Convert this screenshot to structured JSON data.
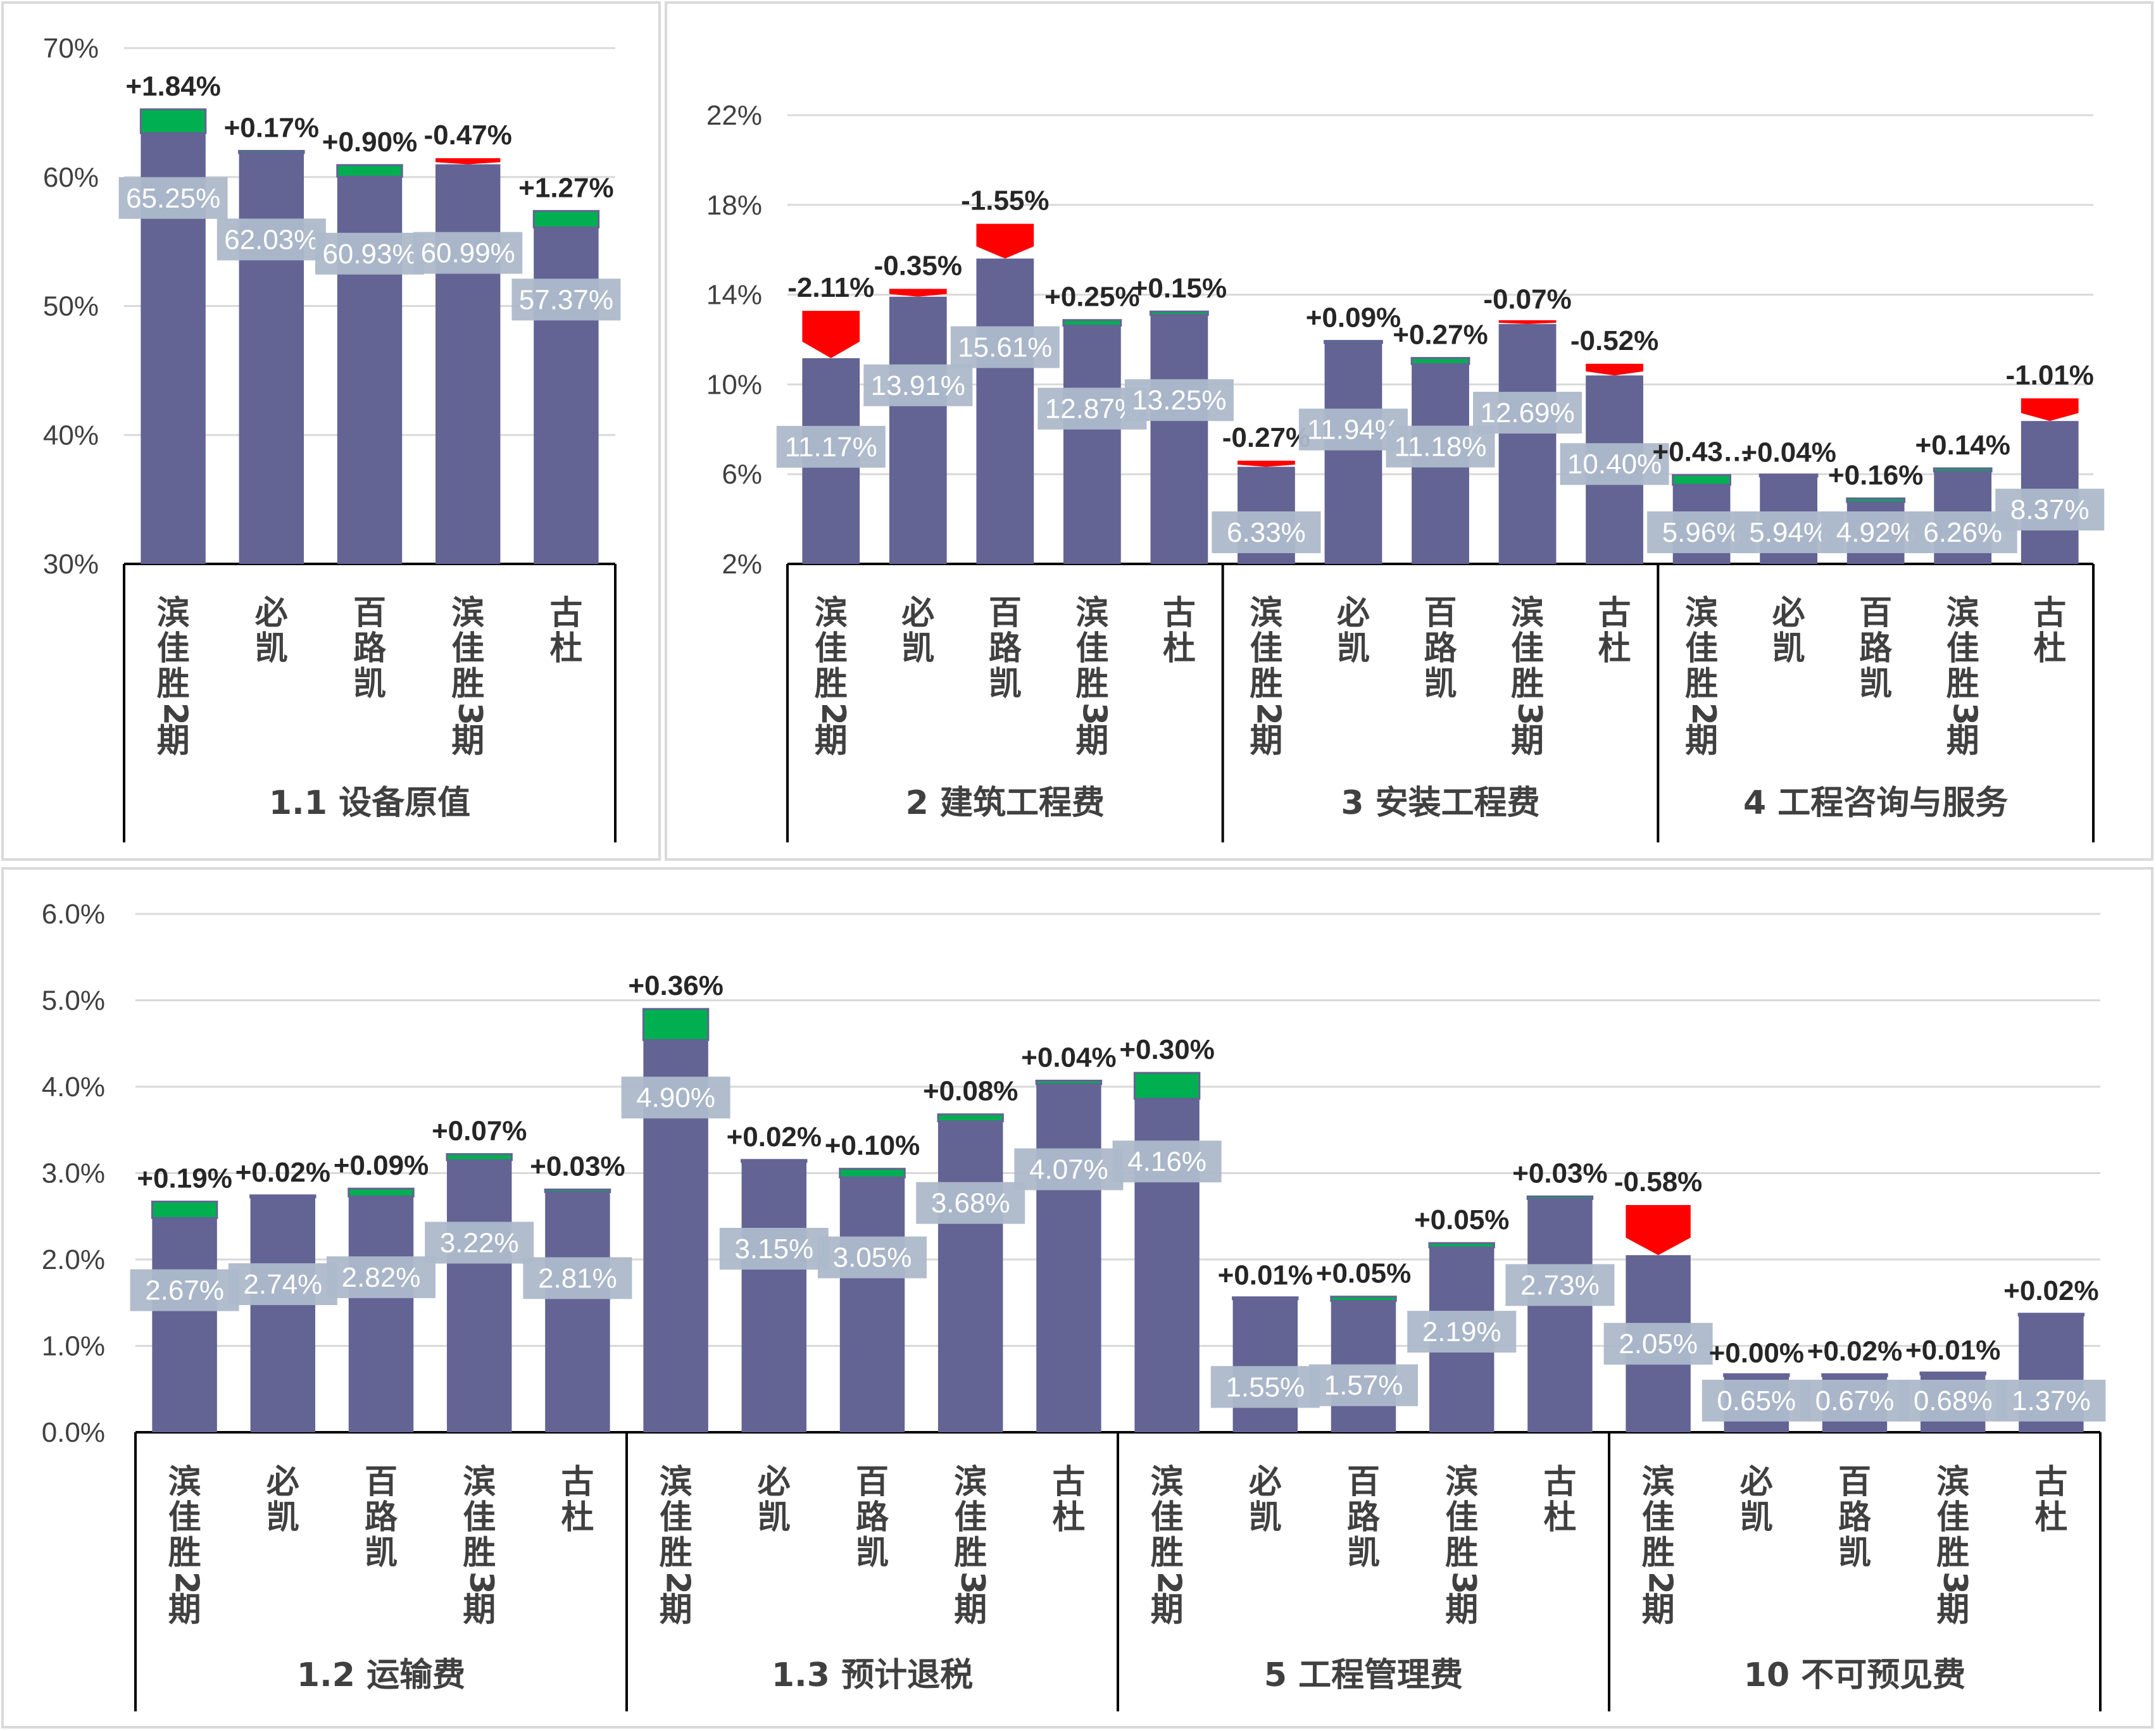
{
  "chart_data": [
    {
      "type": "bar",
      "ylim": [
        30,
        70
      ],
      "yticks": [
        "30%",
        "40%",
        "50%",
        "60%",
        "70%"
      ],
      "groups": [
        {
          "name": "1.1 设备原值",
          "categories": [
            "滨佳胜2期",
            "必凯",
            "百路凯",
            "滨佳胜3期",
            "古杜"
          ],
          "values": [
            65.25,
            62.03,
            60.93,
            60.99,
            57.37
          ],
          "value_labels": [
            "65.25%",
            "62.03%",
            "60.93%",
            "60.99%",
            "57.37%"
          ],
          "deltas": [
            1.84,
            0.17,
            0.9,
            -0.47,
            1.27
          ],
          "delta_labels": [
            "+1.84%",
            "+0.17%",
            "+0.90%",
            "-0.47%",
            "+1.27%"
          ]
        }
      ]
    },
    {
      "type": "bar",
      "ylim": [
        2,
        22
      ],
      "yticks": [
        "2%",
        "6%",
        "10%",
        "14%",
        "18%",
        "22%"
      ],
      "groups": [
        {
          "name": "2 建筑工程费",
          "categories": [
            "滨佳胜2期",
            "必凯",
            "百路凯",
            "滨佳胜3期",
            "古杜"
          ],
          "values": [
            11.17,
            13.91,
            15.61,
            12.87,
            13.25
          ],
          "value_labels": [
            "11.17%",
            "13.91%",
            "15.61%",
            "12.87%",
            "13.25%"
          ],
          "deltas": [
            -2.11,
            -0.35,
            -1.55,
            0.25,
            0.15
          ],
          "delta_labels": [
            "-2.11%",
            "-0.35%",
            "-1.55%",
            "+0.25%",
            "+0.15%"
          ]
        },
        {
          "name": "3 安装工程费",
          "categories": [
            "滨佳胜2期",
            "必凯",
            "百路凯",
            "滨佳胜3期",
            "古杜"
          ],
          "values": [
            6.33,
            11.94,
            11.18,
            12.69,
            10.4
          ],
          "value_labels": [
            "6.33%",
            "11.94%",
            "11.18%",
            "12.69%",
            "10.40%"
          ],
          "deltas": [
            -0.27,
            0.09,
            0.27,
            -0.07,
            -0.52
          ],
          "delta_labels": [
            "-0.27%",
            "+0.09%",
            "+0.27%",
            "-0.07%",
            "-0.52%"
          ]
        },
        {
          "name": "4 工程咨询与服务",
          "categories": [
            "滨佳胜2期",
            "必凯",
            "百路凯",
            "滨佳胜3期",
            "古杜"
          ],
          "values": [
            5.96,
            5.94,
            4.92,
            6.26,
            8.37
          ],
          "value_labels": [
            "5.96%",
            "5.94%",
            "4.92%",
            "6.26%",
            "8.37%"
          ],
          "deltas": [
            0.43,
            0.04,
            0.16,
            0.14,
            -1.01
          ],
          "delta_labels": [
            "+0.43…",
            "+0.04%",
            "+0.16%",
            "+0.14%",
            "-1.01%"
          ]
        }
      ]
    },
    {
      "type": "bar",
      "ylim": [
        0,
        6
      ],
      "yticks": [
        "0.0%",
        "1.0%",
        "2.0%",
        "3.0%",
        "4.0%",
        "5.0%",
        "6.0%"
      ],
      "groups": [
        {
          "name": "1.2 运输费",
          "categories": [
            "滨佳胜2期",
            "必凯",
            "百路凯",
            "滨佳胜3期",
            "古杜"
          ],
          "values": [
            2.67,
            2.74,
            2.82,
            3.22,
            2.81
          ],
          "value_labels": [
            "2.67%",
            "2.74%",
            "2.82%",
            "3.22%",
            "2.81%"
          ],
          "deltas": [
            0.19,
            0.02,
            0.09,
            0.07,
            0.03
          ],
          "delta_labels": [
            "+0.19%",
            "+0.02%",
            "+0.09%",
            "+0.07%",
            "+0.03%"
          ]
        },
        {
          "name": "1.3 预计退税",
          "categories": [
            "滨佳胜2期",
            "必凯",
            "百路凯",
            "滨佳胜3期",
            "古杜"
          ],
          "values": [
            4.9,
            3.15,
            3.05,
            3.68,
            4.07
          ],
          "value_labels": [
            "4.90%",
            "3.15%",
            "3.05%",
            "3.68%",
            "4.07%"
          ],
          "deltas": [
            0.36,
            0.02,
            0.1,
            0.08,
            0.04
          ],
          "delta_labels": [
            "+0.36%",
            "+0.02%",
            "+0.10%",
            "+0.08%",
            "+0.04%"
          ]
        },
        {
          "name": "5 工程管理费",
          "categories": [
            "滨佳胜2期",
            "必凯",
            "百路凯",
            "滨佳胜3期",
            "古杜"
          ],
          "values": [
            4.16,
            1.55,
            1.57,
            2.19,
            2.73
          ],
          "value_labels": [
            "4.16%",
            "1.55%",
            "1.57%",
            "2.19%",
            "2.73%"
          ],
          "deltas": [
            0.3,
            0.01,
            0.05,
            0.05,
            0.03
          ],
          "delta_labels": [
            "+0.30%",
            "+0.01%",
            "+0.05%",
            "+0.05%",
            "+0.03%"
          ]
        },
        {
          "name": "10 不可预见费",
          "categories": [
            "滨佳胜2期",
            "必凯",
            "百路凯",
            "滨佳胜3期",
            "古杜"
          ],
          "values": [
            2.05,
            0.65,
            0.67,
            0.68,
            1.37
          ],
          "value_labels": [
            "2.05%",
            "0.65%",
            "0.67%",
            "0.68%",
            "1.37%"
          ],
          "deltas": [
            -0.58,
            0.0,
            0.02,
            0.01,
            0.02
          ],
          "delta_labels": [
            "-0.58%",
            "+0.00%",
            "+0.02%",
            "+0.01%",
            "+0.02%"
          ]
        }
      ]
    }
  ],
  "colors": {
    "bar": "#636394",
    "increase": "#00b050",
    "decrease": "#ff0000",
    "value_label_bg": "#adb9ca",
    "gridline": "#d9d9d9",
    "axis": "#000000",
    "text": "#404040"
  }
}
